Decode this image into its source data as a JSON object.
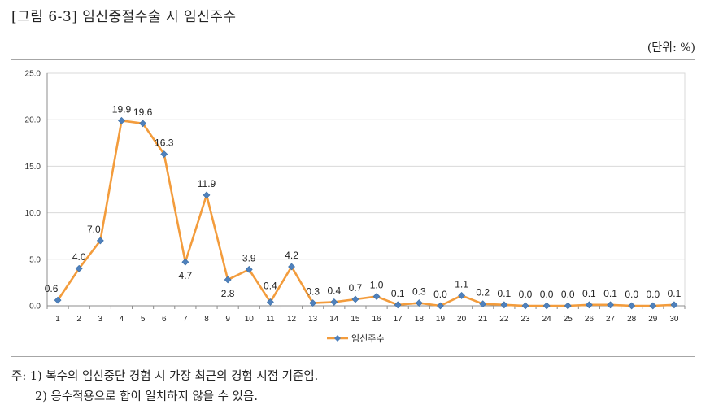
{
  "figure": {
    "title": "[그림 6-3]  임신중절수술 시 임신주수",
    "unit": "(단위: %)"
  },
  "notes": [
    "주: 1) 복수의 임신중단 경험 시 가장 최근의 경험 시점 기준임.",
    "2) 응수적용으로 합이 일치하지 않을 수 있음."
  ],
  "chart_data": {
    "type": "line",
    "title": "",
    "xlabel": "",
    "ylabel": "",
    "categories": [
      "1",
      "2",
      "3",
      "4",
      "5",
      "6",
      "7",
      "8",
      "9",
      "10",
      "11",
      "12",
      "13",
      "14",
      "15",
      "16",
      "17",
      "18",
      "19",
      "20",
      "21",
      "22",
      "23",
      "24",
      "25",
      "26",
      "27",
      "28",
      "29",
      "30"
    ],
    "series": [
      {
        "name": "임신주수",
        "color": "#f39c3c",
        "marker_color": "#4f81bd",
        "values": [
          0.6,
          4.0,
          7.0,
          19.9,
          19.6,
          16.3,
          4.7,
          11.9,
          2.8,
          3.9,
          0.4,
          4.2,
          0.3,
          0.4,
          0.7,
          1.0,
          0.1,
          0.3,
          0.0,
          1.1,
          0.2,
          0.1,
          0.0,
          0.0,
          0.0,
          0.1,
          0.1,
          0.0,
          0.0,
          0.1
        ]
      }
    ],
    "data_labels": [
      "0.6",
      "4.0",
      "7.0",
      "19.9",
      "19.6",
      "16.3",
      "4.7",
      "11.9",
      "2.8",
      "3.9",
      "0.4",
      "4.2",
      "0.3",
      "0.4",
      "0.7",
      "1.0",
      "0.1",
      "0.3",
      "0.0",
      "1.1",
      "0.2",
      "0.1",
      "0.0",
      "0.0",
      "0.0",
      "0.1",
      "0.1",
      "0.0",
      "0.0",
      "0.1"
    ],
    "ylim": [
      0,
      25
    ],
    "yticks": [
      "0.0",
      "5.0",
      "10.0",
      "15.0",
      "20.0",
      "25.0"
    ],
    "grid": true,
    "legend": "bottom"
  }
}
